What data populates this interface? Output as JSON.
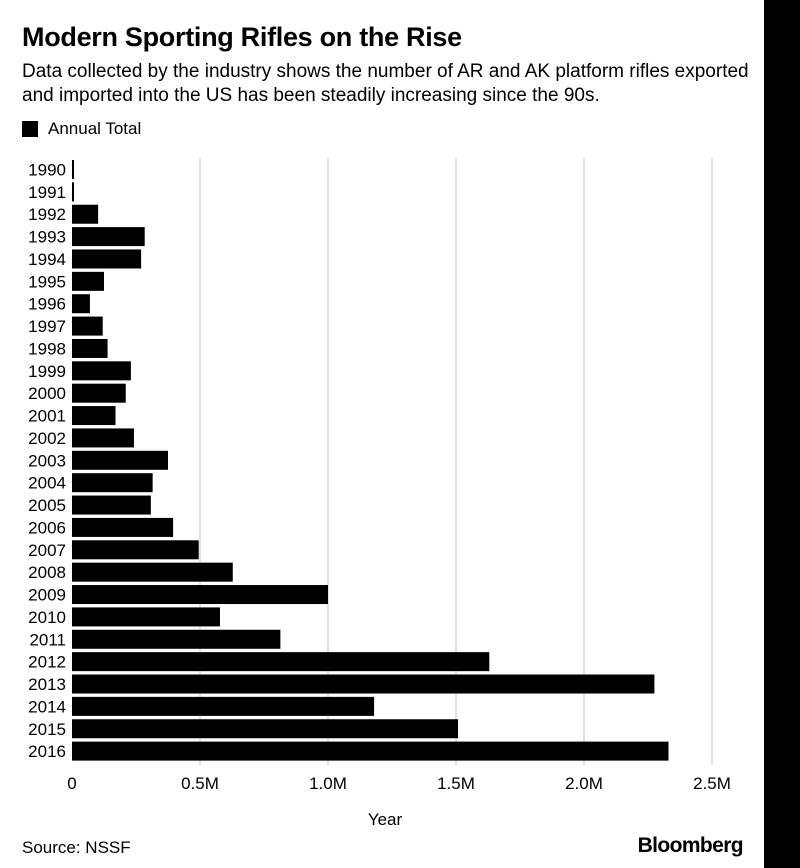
{
  "header": {
    "title": "Modern Sporting Rifles on the Rise",
    "subtitle": "Data collected by the industry shows the number of AR and AK platform rifles exported and imported into the US has been steadily increasing since the 90s."
  },
  "footer": {
    "source": "Source: NSSF",
    "brand": "Bloomberg"
  },
  "colors": {
    "bar": "#000000",
    "grid": "#d9d9d9",
    "strip": "#000000"
  },
  "chart_data": {
    "type": "bar",
    "orientation": "horizontal",
    "title": "Modern Sporting Rifles on the Rise",
    "xlabel": "Year",
    "ylabel": "",
    "xlim": [
      0,
      2500000
    ],
    "xticks": [
      0,
      500000,
      1000000,
      1500000,
      2000000,
      2500000
    ],
    "xtick_labels": [
      "0",
      "0.5M",
      "1.0M",
      "1.5M",
      "2.0M",
      "2.5M"
    ],
    "grid": "vertical",
    "legend_position": "top-left",
    "categories": [
      "1990",
      "1991",
      "1992",
      "1993",
      "1994",
      "1995",
      "1996",
      "1997",
      "1998",
      "1999",
      "2000",
      "2001",
      "2002",
      "2003",
      "2004",
      "2005",
      "2006",
      "2007",
      "2008",
      "2009",
      "2010",
      "2011",
      "2012",
      "2013",
      "2014",
      "2015",
      "2016"
    ],
    "series": [
      {
        "name": "Annual Total",
        "values": [
          8000,
          6000,
          102000,
          284000,
          270000,
          125000,
          70000,
          120000,
          139000,
          230000,
          210000,
          170000,
          242000,
          375000,
          315000,
          308000,
          395000,
          495000,
          628000,
          1000000,
          578000,
          814000,
          1630000,
          2275000,
          1180000,
          1508000,
          2330000
        ]
      }
    ]
  }
}
